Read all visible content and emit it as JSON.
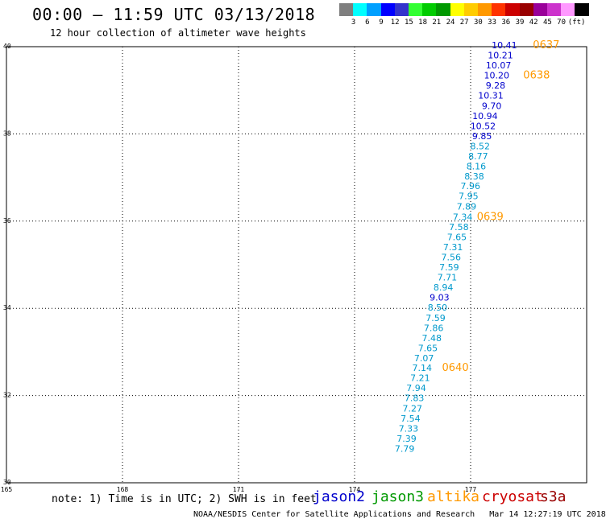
{
  "header": {
    "title": "00:00 – 11:59 UTC 03/13/2018",
    "subtitle": "12 hour collection of altimeter wave heights"
  },
  "legend": {
    "colors": [
      "#7f7f7f",
      "#00ffff",
      "#00a0ff",
      "#0000ff",
      "#3333cc",
      "#33ff33",
      "#00cc00",
      "#009900",
      "#ffff00",
      "#ffcc00",
      "#ff9900",
      "#ff3300",
      "#cc0000",
      "#990000",
      "#990099",
      "#cc33cc",
      "#ff99ff",
      "#000000"
    ],
    "labels": [
      "3",
      "6",
      "9",
      "12",
      "15",
      "18",
      "21",
      "24",
      "27",
      "30",
      "33",
      "36",
      "39",
      "42",
      "45",
      "70",
      "(ft)"
    ]
  },
  "chart_data": {
    "type": "scatter",
    "xlim": [
      165,
      180
    ],
    "ylim": [
      30,
      40
    ],
    "x_ticks": [
      165,
      168,
      171,
      174,
      177
    ],
    "y_ticks": [
      40,
      38,
      36,
      34,
      32,
      30
    ],
    "y_tick_labels": [
      "40",
      "38",
      "36",
      "34",
      "32",
      "30"
    ],
    "grid": true,
    "points": [
      {
        "lon": 178.2,
        "lat": 39.96,
        "swh": "10.41",
        "color": "#0000cc"
      },
      {
        "lon": 178.1,
        "lat": 39.73,
        "swh": "10.21",
        "color": "#0000cc"
      },
      {
        "lon": 178.05,
        "lat": 39.5,
        "swh": "10.07",
        "color": "#0000cc"
      },
      {
        "lon": 178.0,
        "lat": 39.27,
        "swh": "10.20",
        "color": "#0000cc"
      },
      {
        "lon": 177.9,
        "lat": 39.04,
        "swh": "9.28",
        "color": "#0000cc"
      },
      {
        "lon": 177.85,
        "lat": 38.81,
        "swh": "10.31",
        "color": "#0000cc"
      },
      {
        "lon": 177.8,
        "lat": 38.57,
        "swh": "9.70",
        "color": "#0000cc"
      },
      {
        "lon": 177.7,
        "lat": 38.34,
        "swh": "10.94",
        "color": "#0000cc"
      },
      {
        "lon": 177.65,
        "lat": 38.11,
        "swh": "10.52",
        "color": "#0000cc"
      },
      {
        "lon": 177.55,
        "lat": 37.88,
        "swh": "9.85",
        "color": "#0000cc"
      },
      {
        "lon": 177.5,
        "lat": 37.65,
        "swh": "8.52",
        "color": "#0099cc"
      },
      {
        "lon": 177.45,
        "lat": 37.42,
        "swh": "8.77",
        "color": "#0099cc"
      },
      {
        "lon": 177.4,
        "lat": 37.19,
        "swh": "8.16",
        "color": "#0099cc"
      },
      {
        "lon": 177.35,
        "lat": 36.96,
        "swh": "8.38",
        "color": "#0099cc"
      },
      {
        "lon": 177.25,
        "lat": 36.73,
        "swh": "7.96",
        "color": "#0099cc"
      },
      {
        "lon": 177.2,
        "lat": 36.5,
        "swh": "7.95",
        "color": "#0099cc"
      },
      {
        "lon": 177.15,
        "lat": 36.26,
        "swh": "7.89",
        "color": "#0099cc"
      },
      {
        "lon": 177.05,
        "lat": 36.02,
        "swh": "7.34",
        "color": "#0099cc"
      },
      {
        "lon": 176.95,
        "lat": 35.79,
        "swh": "7.58",
        "color": "#0099cc"
      },
      {
        "lon": 176.9,
        "lat": 35.56,
        "swh": "7.65",
        "color": "#0099cc"
      },
      {
        "lon": 176.8,
        "lat": 35.33,
        "swh": "7.31",
        "color": "#0099cc"
      },
      {
        "lon": 176.75,
        "lat": 35.1,
        "swh": "7.56",
        "color": "#0099cc"
      },
      {
        "lon": 176.7,
        "lat": 34.87,
        "swh": "7.59",
        "color": "#0099cc"
      },
      {
        "lon": 176.65,
        "lat": 34.64,
        "swh": "7.71",
        "color": "#0099cc"
      },
      {
        "lon": 176.55,
        "lat": 34.41,
        "swh": "8.94",
        "color": "#0099cc"
      },
      {
        "lon": 176.45,
        "lat": 34.18,
        "swh": "9.03",
        "color": "#0000cc"
      },
      {
        "lon": 176.4,
        "lat": 33.95,
        "swh": "8.50",
        "color": "#0099cc"
      },
      {
        "lon": 176.35,
        "lat": 33.71,
        "swh": "7.59",
        "color": "#0099cc"
      },
      {
        "lon": 176.3,
        "lat": 33.48,
        "swh": "7.86",
        "color": "#0099cc"
      },
      {
        "lon": 176.25,
        "lat": 33.25,
        "swh": "7.48",
        "color": "#0099cc"
      },
      {
        "lon": 176.15,
        "lat": 33.02,
        "swh": "7.65",
        "color": "#0099cc"
      },
      {
        "lon": 176.05,
        "lat": 32.79,
        "swh": "7.07",
        "color": "#0099cc"
      },
      {
        "lon": 176.0,
        "lat": 32.56,
        "swh": "7.14",
        "color": "#0099cc"
      },
      {
        "lon": 175.95,
        "lat": 32.33,
        "swh": "7.21",
        "color": "#0099cc"
      },
      {
        "lon": 175.85,
        "lat": 32.1,
        "swh": "7.94",
        "color": "#0099cc"
      },
      {
        "lon": 175.8,
        "lat": 31.87,
        "swh": "7.83",
        "color": "#0099cc"
      },
      {
        "lon": 175.75,
        "lat": 31.63,
        "swh": "7.27",
        "color": "#0099cc"
      },
      {
        "lon": 175.7,
        "lat": 31.4,
        "swh": "7.54",
        "color": "#0099cc"
      },
      {
        "lon": 175.65,
        "lat": 31.17,
        "swh": "7.33",
        "color": "#0099cc"
      },
      {
        "lon": 175.6,
        "lat": 30.94,
        "swh": "7.39",
        "color": "#0099cc"
      },
      {
        "lon": 175.55,
        "lat": 30.71,
        "swh": "7.79",
        "color": "#0099cc"
      }
    ],
    "time_labels": [
      {
        "text": "0637",
        "lon": 179.3,
        "lat": 39.96
      },
      {
        "text": "0638",
        "lon": 179.05,
        "lat": 39.27
      },
      {
        "text": "0639",
        "lon": 177.85,
        "lat": 36.02
      },
      {
        "text": "0640",
        "lon": 176.95,
        "lat": 32.56
      }
    ]
  },
  "footer": {
    "note": "note: 1) Time is in UTC; 2) SWH is in feet",
    "satellites": [
      {
        "name": "jason2",
        "color": "#0000cc"
      },
      {
        "name": "jason3",
        "color": "#009900"
      },
      {
        "name": "altika",
        "color": "#ff9900"
      },
      {
        "name": "cryosat",
        "color": "#cc0000"
      },
      {
        "name": "s3a",
        "color": "#990000"
      }
    ],
    "credit": "NOAA/NESDIS Center for Satellite Applications and Research   Mar 14 12:27:19 UTC 2018",
    "time_label_color": "#ff9900"
  }
}
